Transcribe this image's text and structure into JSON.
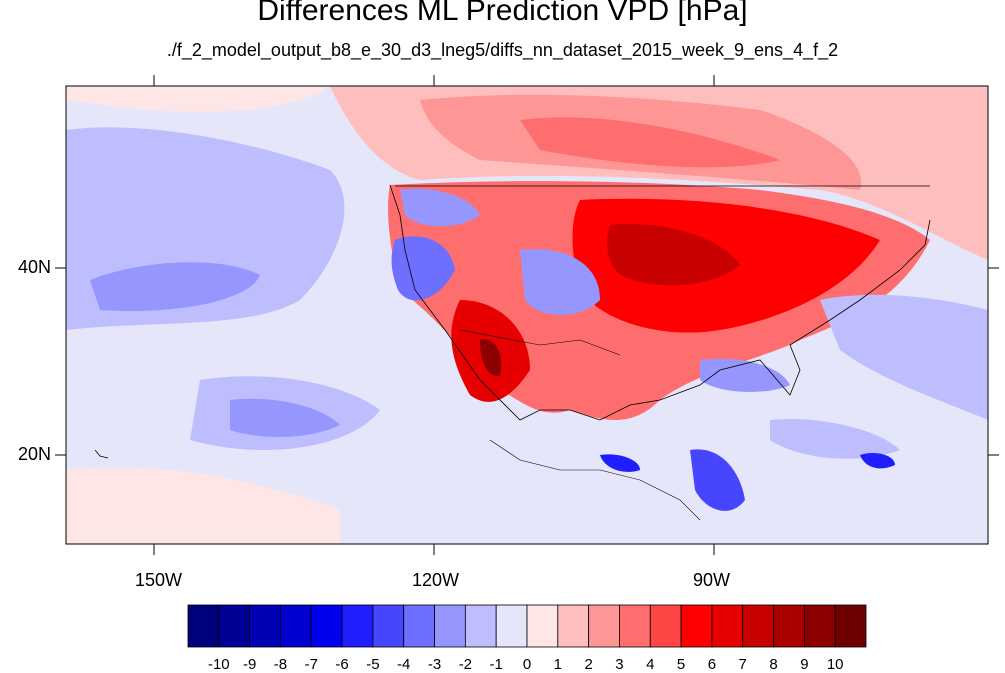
{
  "header": {
    "title": "Differences ML Prediction VPD [hPa]",
    "subtitle": "./f_2_model_output_b8_e_30_d3_lneg5/diffs_nn_dataset_2015_week_9_ens_4_f_2"
  },
  "map": {
    "lon_labels": [
      "150W",
      "120W",
      "90W"
    ],
    "lat_labels": [
      "40N",
      "20N"
    ]
  },
  "colorbar": {
    "labels": [
      "-10",
      "-9",
      "-8",
      "-7",
      "-6",
      "-5",
      "-4",
      "-3",
      "-2",
      "-1",
      "0",
      "1",
      "2",
      "3",
      "4",
      "5",
      "6",
      "7",
      "8",
      "9",
      "10"
    ],
    "colors": [
      "#00007a",
      "#000096",
      "#0000b4",
      "#0000d2",
      "#0000f0",
      "#1e1eff",
      "#4646ff",
      "#6e6eff",
      "#9696ff",
      "#bebeff",
      "#e6e6fa",
      "#ffe6e6",
      "#ffbebe",
      "#ff9696",
      "#ff6e6e",
      "#ff4646",
      "#ff0000",
      "#e60000",
      "#c80000",
      "#aa0000",
      "#8c0000",
      "#6e0000"
    ]
  }
}
